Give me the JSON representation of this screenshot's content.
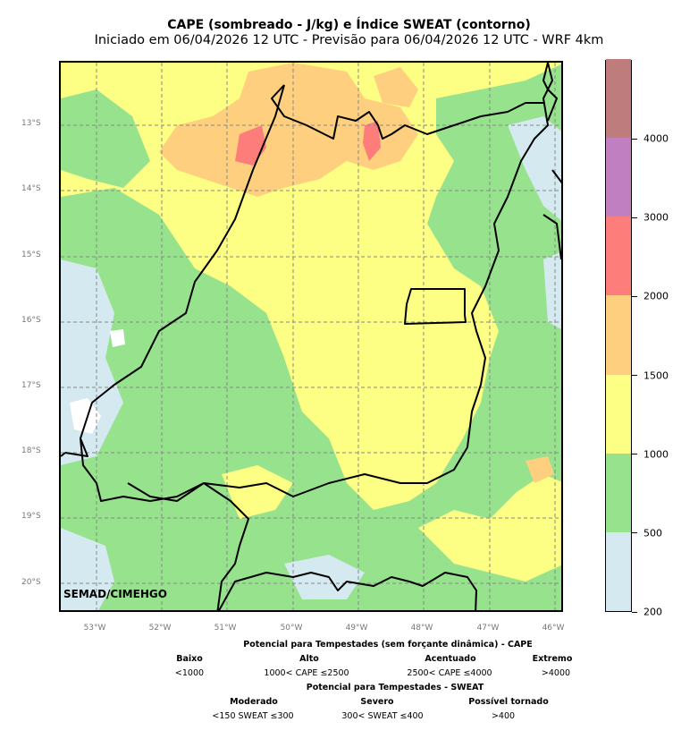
{
  "title": "CAPE (sombreado - J/kg) e Índice SWEAT (contorno)",
  "subtitle": "Iniciado em 06/04/2026 12 UTC - Previsão para 06/04/2026 12 UTC - WRF 4km",
  "credit": "SEMAD/CIMEHGO",
  "lat_labels": [
    "13°S",
    "14°S",
    "15°S",
    "16°S",
    "17°S",
    "18°S",
    "19°S",
    "20°S"
  ],
  "lon_labels": [
    "53°W",
    "52°W",
    "51°W",
    "50°W",
    "49°W",
    "48°W",
    "47°W",
    "46°W"
  ],
  "colorbar": {
    "ticks": [
      "200",
      "500",
      "1000",
      "1500",
      "2000",
      "3000",
      "4000"
    ],
    "colors": [
      "#d4eaf0",
      "#96e28d",
      "#fdff84",
      "#fdcf7e",
      "#fd7d7a",
      "#bf7fc0",
      "#bf7c7c"
    ]
  },
  "legend": {
    "cape_title": "Potencial para Tempestades (sem forçante dinâmica) - CAPE",
    "cape_cats": [
      {
        "name": "Baixo",
        "range": "<1000"
      },
      {
        "name": "Alto",
        "range": "1000< CAPE ≤2500"
      },
      {
        "name": "Acentuado",
        "range": "2500< CAPE ≤4000"
      },
      {
        "name": "Extremo",
        "range": ">4000"
      }
    ],
    "sweat_title": "Potencial para Tempestades - SWEAT",
    "sweat_cats": [
      {
        "name": "Moderado",
        "range": "<150 SWEAT ≤300"
      },
      {
        "name": "Severo",
        "range": "300< SWEAT ≤400"
      },
      {
        "name": "Possível tornado",
        "range": ">400"
      }
    ]
  }
}
